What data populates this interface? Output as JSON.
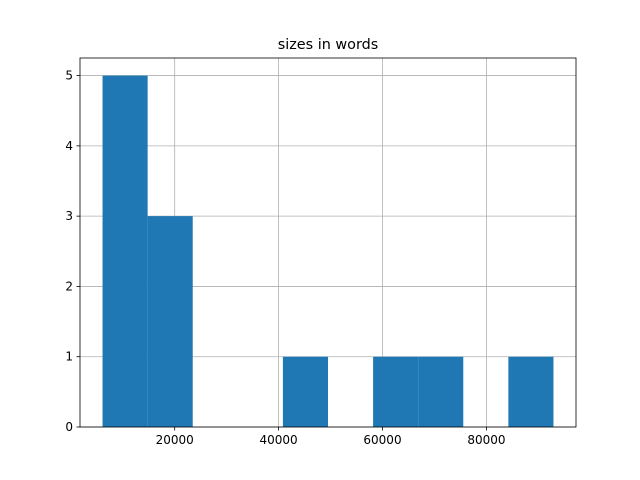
{
  "chart_data": {
    "type": "histogram",
    "title": "sizes in words",
    "bins": [
      6114,
      14793,
      23472,
      32151,
      40830,
      49509,
      58188,
      66867,
      75546,
      84225,
      92904
    ],
    "values": [
      5,
      3,
      0,
      0,
      1,
      0,
      1,
      1,
      0,
      1
    ],
    "color": "#1f77b4",
    "xlim": [
      1774,
      97244
    ],
    "xticks": [
      20000,
      40000,
      60000,
      80000
    ],
    "ylim": [
      0,
      5.25
    ],
    "yticks": [
      0,
      1,
      2,
      3,
      4,
      5
    ],
    "grid": true
  }
}
